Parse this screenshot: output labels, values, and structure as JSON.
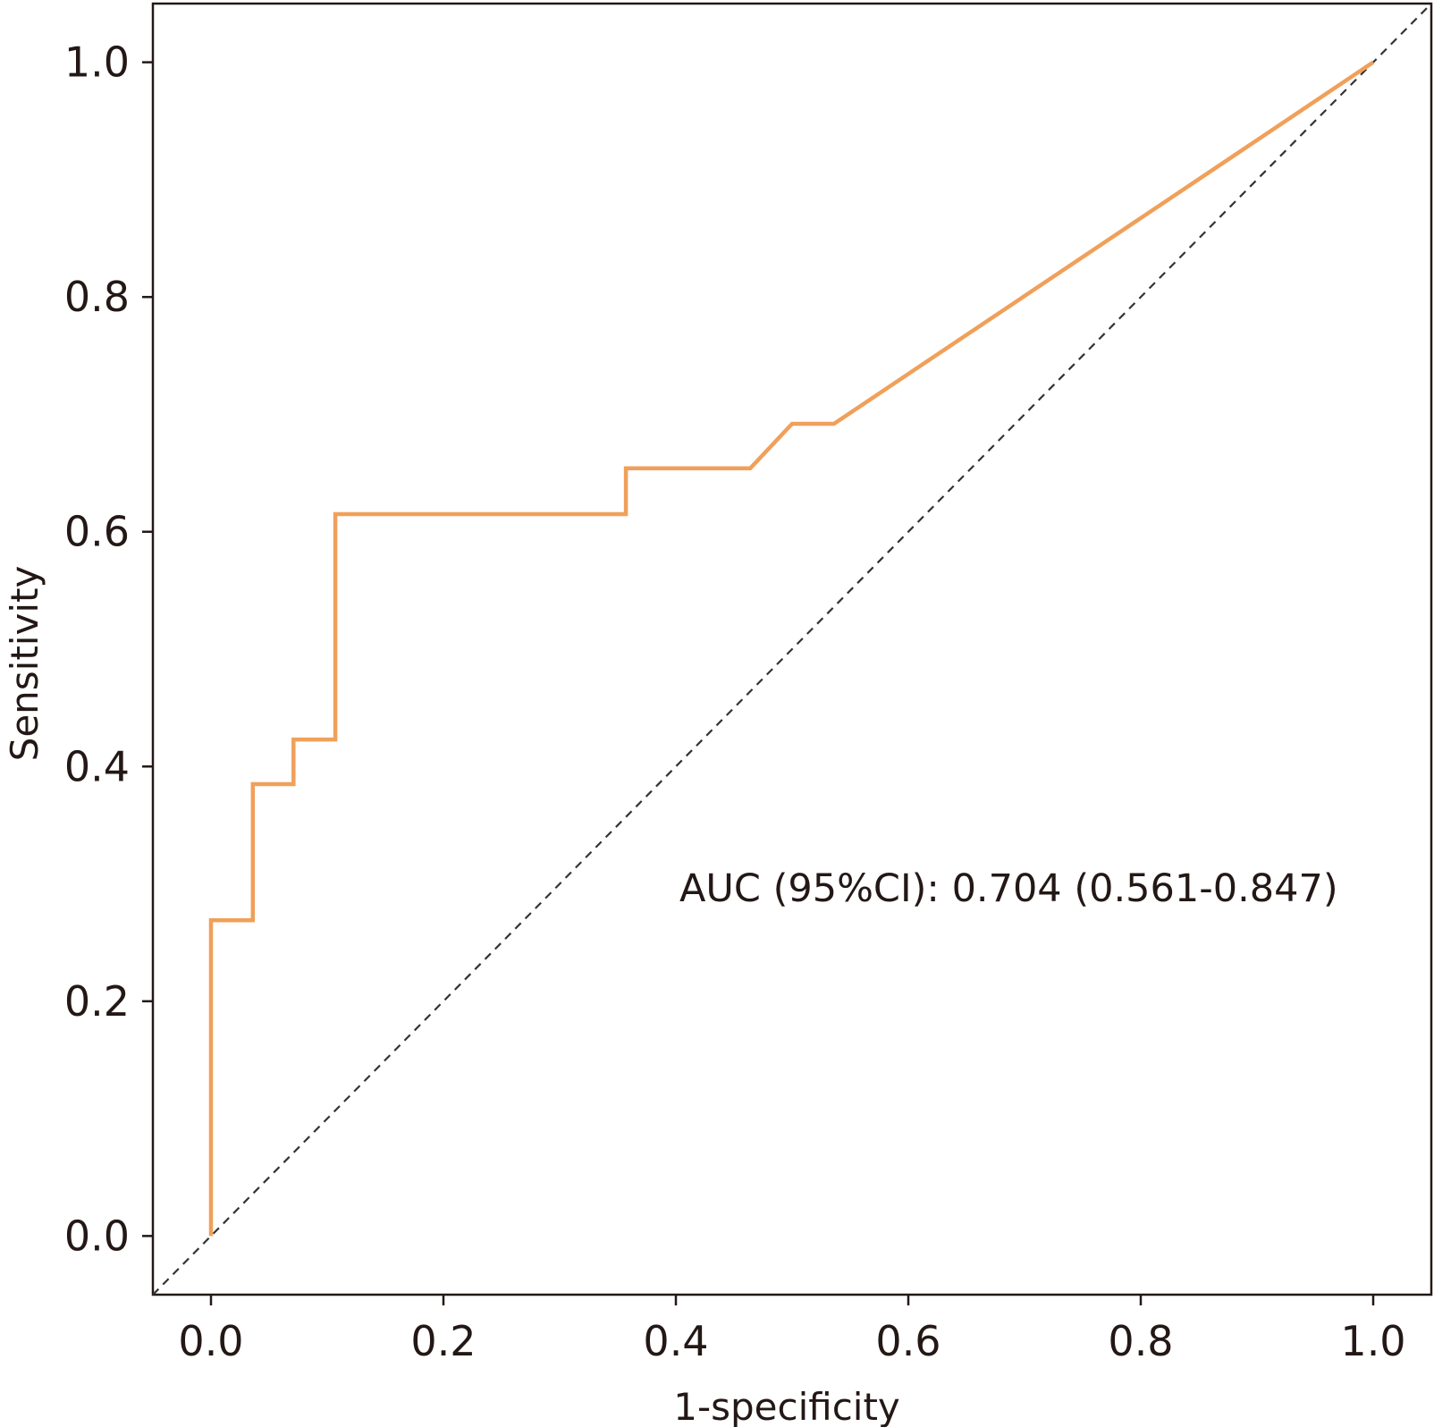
{
  "chart_data": {
    "type": "line",
    "title": "",
    "xlabel": "1-specificity",
    "ylabel": "Sensitivity",
    "xlim": [
      -0.05,
      1.05
    ],
    "ylim": [
      -0.05,
      1.05
    ],
    "x_ticks": [
      0.0,
      0.2,
      0.4,
      0.6,
      0.8,
      1.0
    ],
    "y_ticks": [
      0.0,
      0.2,
      0.4,
      0.6,
      0.8,
      1.0
    ],
    "x_tick_labels": [
      "0.0",
      "0.2",
      "0.4",
      "0.6",
      "0.8",
      "1.0"
    ],
    "y_tick_labels": [
      "0.0",
      "0.2",
      "0.4",
      "0.6",
      "0.8",
      "1.0"
    ],
    "grid": false,
    "annotation": "AUC (95%CI): 0.704 (0.561-0.847)",
    "series": [
      {
        "color": "#f0a05a",
        "x": [
          0.0,
          0.0,
          0.036,
          0.036,
          0.071,
          0.071,
          0.107,
          0.107,
          0.357,
          0.357,
          0.464,
          0.5,
          0.536,
          1.0
        ],
        "y": [
          0.0,
          0.269,
          0.269,
          0.385,
          0.385,
          0.423,
          0.423,
          0.615,
          0.615,
          0.654,
          0.654,
          0.692,
          0.692,
          1.0
        ]
      }
    ],
    "reference_line": {
      "style": "dashed",
      "color": "#333333",
      "x": [
        -0.05,
        1.05
      ],
      "y": [
        -0.05,
        1.05
      ]
    }
  }
}
